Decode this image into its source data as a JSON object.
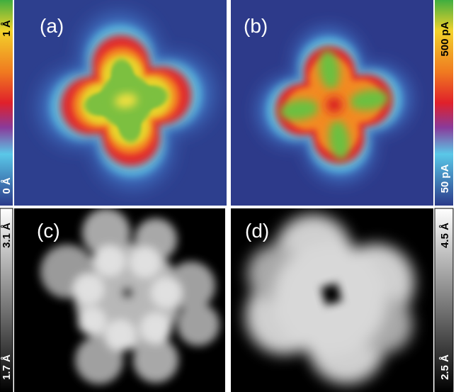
{
  "panels": [
    {
      "label": "(a)"
    },
    {
      "label": "(b)"
    },
    {
      "label": "(c)"
    },
    {
      "label": "(d)"
    }
  ],
  "colorbars": [
    {
      "top": "1 Å",
      "bottom": "0 Å"
    },
    {
      "top": "500 pA",
      "bottom": "50 pA"
    },
    {
      "top": "3.1 Å",
      "bottom": "1.7 Å"
    },
    {
      "top": "4.5 Å",
      "bottom": "2.5 Å"
    }
  ]
}
